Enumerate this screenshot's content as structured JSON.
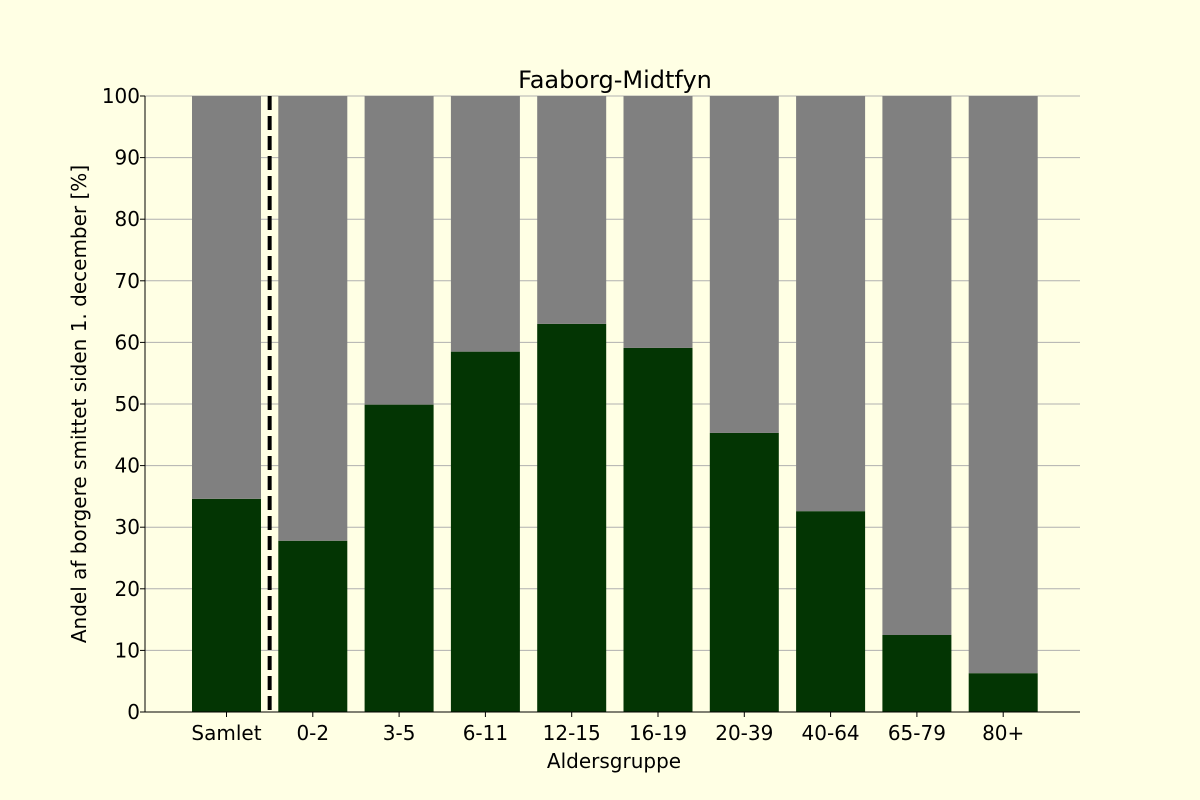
{
  "chart_data": {
    "type": "bar",
    "stacked": true,
    "title": "Faaborg-Midtfyn",
    "xlabel": "Aldersgruppe",
    "ylabel": "Andel af borgere smittet siden 1. december [%]",
    "categories": [
      "Samlet",
      "0-2",
      "3-5",
      "6-11",
      "12-15",
      "16-19",
      "20-39",
      "40-64",
      "65-79",
      "80+"
    ],
    "series": [
      {
        "values": [
          34.6,
          27.8,
          49.9,
          58.5,
          63.0,
          59.1,
          45.3,
          32.6,
          12.5,
          6.3
        ],
        "color": "#033503"
      },
      {
        "values": [
          65.4,
          72.2,
          50.1,
          41.5,
          37.0,
          40.9,
          54.7,
          67.4,
          87.5,
          93.7
        ],
        "color": "#808080"
      }
    ],
    "ylim": [
      0,
      100
    ],
    "yticks": [
      0,
      10,
      20,
      30,
      40,
      50,
      60,
      70,
      80,
      90,
      100
    ],
    "grid": "horizontal",
    "legend": "none",
    "separator": {
      "after_category": "Samlet",
      "style": "dashed"
    },
    "colors": {
      "background": "#ffffe4",
      "gridline": "#b0b0b0"
    }
  }
}
